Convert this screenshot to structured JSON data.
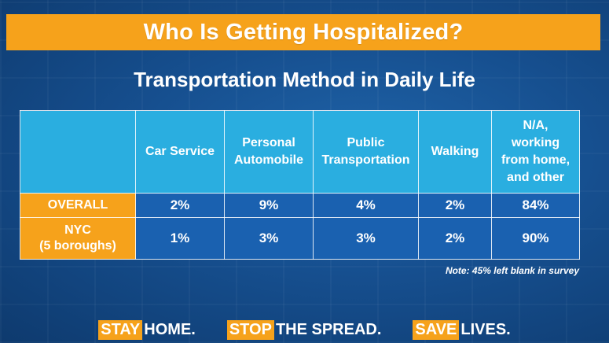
{
  "title": "Who Is Getting Hospitalized?",
  "subtitle": "Transportation Method in Daily Life",
  "table": {
    "columns": [
      [
        "Car Service"
      ],
      [
        "Personal",
        "Automobile"
      ],
      [
        "Public",
        "Transportation"
      ],
      [
        "Walking"
      ],
      [
        "N/A,",
        "working",
        "from home,",
        "and other"
      ]
    ],
    "rows": [
      {
        "label": [
          "OVERALL"
        ],
        "values": [
          "2%",
          "9%",
          "4%",
          "2%",
          "84%"
        ]
      },
      {
        "label": [
          "NYC",
          "(5 boroughs)"
        ],
        "values": [
          "1%",
          "3%",
          "3%",
          "2%",
          "90%"
        ]
      }
    ]
  },
  "note": "Note: 45% left blank in survey",
  "footer": [
    {
      "highlight": "STAY",
      "rest": "HOME."
    },
    {
      "highlight": "STOP",
      "rest": "THE SPREAD."
    },
    {
      "highlight": "SAVE",
      "rest": "LIVES."
    }
  ],
  "colors": {
    "orange": "#f6a21b",
    "header_blue": "#2aaee0",
    "cell_blue": "#1a61b0"
  }
}
